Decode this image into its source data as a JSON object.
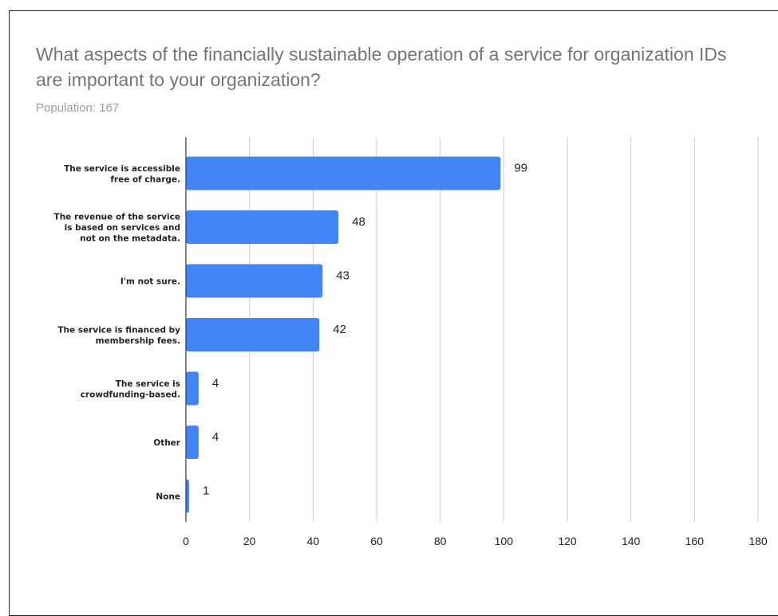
{
  "chart_data": {
    "type": "bar",
    "orientation": "horizontal",
    "title": "What aspects of the financially sustainable operation of a service for organization IDs are important to your organization?",
    "subtitle": "Population: 167",
    "categories": [
      [
        "The service is accessible",
        "free of charge."
      ],
      [
        "The revenue of the service",
        "is based on services and",
        "not on the metadata."
      ],
      [
        "I'm not sure."
      ],
      [
        "The service is financed by",
        "membership fees."
      ],
      [
        "The service is",
        "crowdfunding-based."
      ],
      [
        "Other"
      ],
      [
        "None"
      ]
    ],
    "values": [
      99,
      48,
      43,
      42,
      4,
      4,
      1
    ],
    "xlim": [
      0,
      180
    ],
    "xticks": [
      0,
      20,
      40,
      60,
      80,
      100,
      120,
      140,
      160,
      180
    ],
    "grid": true,
    "legend": "none",
    "bar_color": "#4285f4",
    "grid_color": "#cccccc",
    "axis_color": "#333333"
  }
}
